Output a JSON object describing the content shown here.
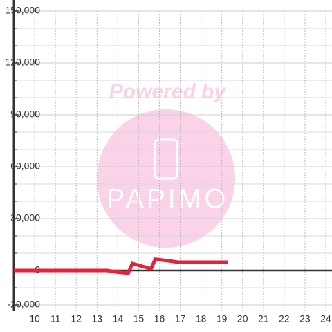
{
  "chart_data": {
    "type": "line",
    "x": [
      9,
      13.5,
      14.0,
      14.5,
      14.7,
      15.3,
      15.6,
      15.8,
      16.5,
      16.9,
      19.3
    ],
    "series": [
      {
        "color": "#e8213a",
        "values": [
          0,
          0,
          -1000,
          -1500,
          4000,
          2000,
          1000,
          6500,
          5500,
          4800,
          4800
        ]
      }
    ],
    "xlim": [
      9,
      24.3
    ],
    "xticks": [
      10,
      11,
      12,
      13,
      14,
      15,
      16,
      17,
      18,
      19,
      20,
      21,
      22,
      23,
      24
    ],
    "ylim": [
      -20000,
      150000
    ],
    "yticks": [
      {
        "value": -20000,
        "label": "-20,000"
      },
      0,
      {
        "value": 30000,
        "label": "30,000"
      },
      {
        "value": 60000,
        "label": "60,000"
      },
      {
        "value": 90000,
        "label": "90,000"
      },
      {
        "value": 120000,
        "label": "120,000"
      },
      {
        "value": 150000,
        "label": "150,000"
      }
    ],
    "minor_yticks": [
      -10000,
      10000,
      20000,
      40000,
      50000,
      70000,
      80000,
      100000,
      110000,
      130000,
      140000
    ],
    "grid": true,
    "watermark": {
      "line1": "Powered by",
      "line2": "PAPIMO"
    }
  }
}
